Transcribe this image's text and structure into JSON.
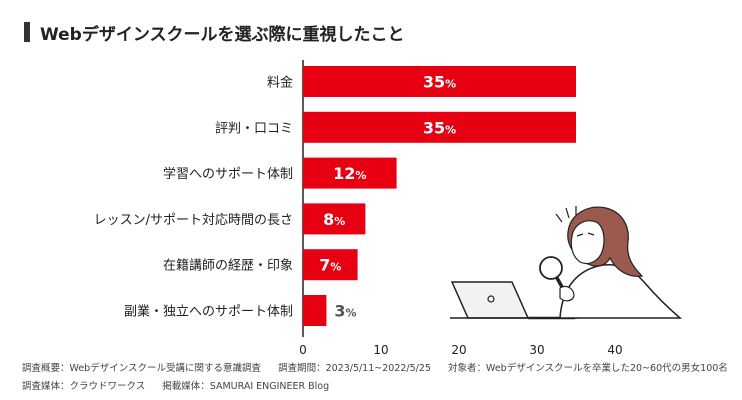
{
  "title": "Webデザインスクールを選ぶ際に重視したこと",
  "colors": {
    "bar": "#e60012",
    "text": "#222222",
    "accent_dark": "#333333"
  },
  "chart_data": {
    "type": "bar",
    "orientation": "horizontal",
    "title": "Webデザインスクールを選ぶ際に重視したこと",
    "categories": [
      "料金",
      "評判・口コミ",
      "学習へのサポート体制",
      "レッスン/サポート対応時間の長さ",
      "在籍講師の経歴・印象",
      "副業・独立へのサポート体制"
    ],
    "values": [
      35,
      35,
      12,
      8,
      7,
      3
    ],
    "value_suffix": "%",
    "xlim": [
      0,
      45
    ],
    "xticks": [
      0,
      10,
      20,
      30,
      40
    ],
    "xlabel": "",
    "ylabel": "",
    "grid": false
  },
  "footer": {
    "survey_summary": "調査概要：Webデザインスクール受講に関する意識調査",
    "survey_period": "調査期間：2023/5/11~2022/5/25",
    "respondents": "対象者：Webデザインスクールを卒業した20~60代の男女100名",
    "survey_medium": "調査媒体：クラウドワークス",
    "published_medium": "掲載媒体：SAMURAI ENGINEER Blog"
  },
  "illustration": {
    "icon": "person-with-magnifier-and-laptop-icon"
  }
}
